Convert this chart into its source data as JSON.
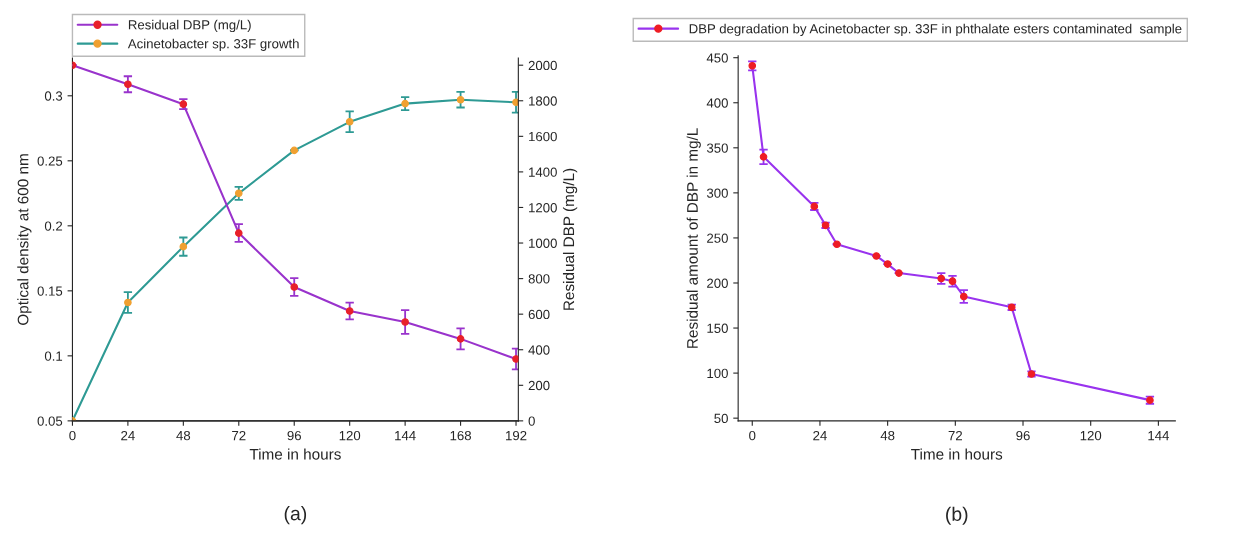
{
  "chart_data": [
    {
      "type": "line",
      "xlabel": "Time in hours",
      "ylabel": "Optical density at 600 nm",
      "y2label": "Residual DBP (mg/L)",
      "x": [
        0,
        24,
        48,
        72,
        96,
        120,
        144,
        168,
        192
      ],
      "series": [
        {
          "name": "Residual DBP (mg/L)",
          "axis": "y2",
          "color": "#9933cc",
          "colors": [
            "#e8202a",
            "#e8202a",
            "#e8202a",
            "#e8202a",
            "#e8202a",
            "#e8202a",
            "#e8202a",
            "#e8202a",
            "#e8202a"
          ],
          "values": [
            2000,
            1893,
            1781,
            1056,
            753,
            618,
            556,
            461,
            348
          ],
          "errors": [
            null,
            45,
            28,
            50,
            50,
            47,
            67,
            59,
            58
          ]
        },
        {
          "name": "Acinetobacter sp. 33F growth",
          "color": "#2e9a94",
          "colors": [
            "#f0a030",
            "#f0a030",
            "#f0a030",
            "#f0a030",
            "#f0a030",
            "#f0a030",
            "#f0a030",
            "#f0a030",
            "#f0a030"
          ],
          "values": [
            0.05,
            0.141,
            0.184,
            0.225,
            0.258,
            0.28,
            0.294,
            0.297,
            0.295
          ],
          "errors": [
            null,
            0.008,
            0.007,
            0.005,
            null,
            0.008,
            0.005,
            0.006,
            0.008
          ]
        }
      ],
      "xlim": [
        0,
        193
      ],
      "xticks": [
        0,
        24,
        48,
        72,
        96,
        120,
        144,
        168,
        192
      ],
      "ylim": [
        0.05,
        0.329
      ],
      "yticks": [
        0.05,
        0.1,
        0.15,
        0.2,
        0.25,
        0.3
      ],
      "y2lim": [
        0,
        2040
      ],
      "y2ticks": [
        0,
        200,
        400,
        600,
        800,
        1000,
        1200,
        1400,
        1600,
        1800,
        2000
      ],
      "marker": "circle",
      "line_style": "solid",
      "grid": false,
      "legend": "top left",
      "annotations": [
        "(a)"
      ]
    },
    {
      "type": "line",
      "xlabel": "Time in hours",
      "ylabel": "Residual amount of DBP in mg/L",
      "x": [
        0,
        4,
        22,
        26,
        30,
        44,
        48,
        52,
        67,
        71,
        75,
        92,
        99,
        141
      ],
      "series": [
        {
          "name": "DBP degradation by Acinetobacter sp. 33F in phthalate esters contaminated  sample",
          "color": "#9933ee",
          "colors": [
            "#ee1c24",
            "#ee1c24",
            "#ee1c24",
            "#ee1c24",
            "#ee1c24",
            "#ee1c24",
            "#ee1c24",
            "#ee1c24",
            "#ee1c24",
            "#ee1c24",
            "#ee1c24",
            "#ee1c24",
            "#ee1c24",
            "#ee1c24"
          ],
          "values": [
            441,
            340,
            285,
            264,
            243,
            230,
            221,
            211,
            205,
            202,
            185,
            173,
            99,
            70
          ],
          "errors": [
            5,
            8,
            4,
            3,
            null,
            null,
            null,
            null,
            6,
            6,
            7,
            3,
            3,
            4
          ]
        }
      ],
      "xlim": [
        -5,
        150
      ],
      "xticks": [
        0,
        24,
        48,
        72,
        96,
        120,
        144
      ],
      "ylim": [
        47,
        452
      ],
      "yticks": [
        50,
        100,
        150,
        200,
        250,
        300,
        350,
        400,
        450
      ],
      "marker": "circle",
      "line_style": "solid",
      "grid": false,
      "legend": "top",
      "annotations": [
        "(b)"
      ]
    }
  ]
}
